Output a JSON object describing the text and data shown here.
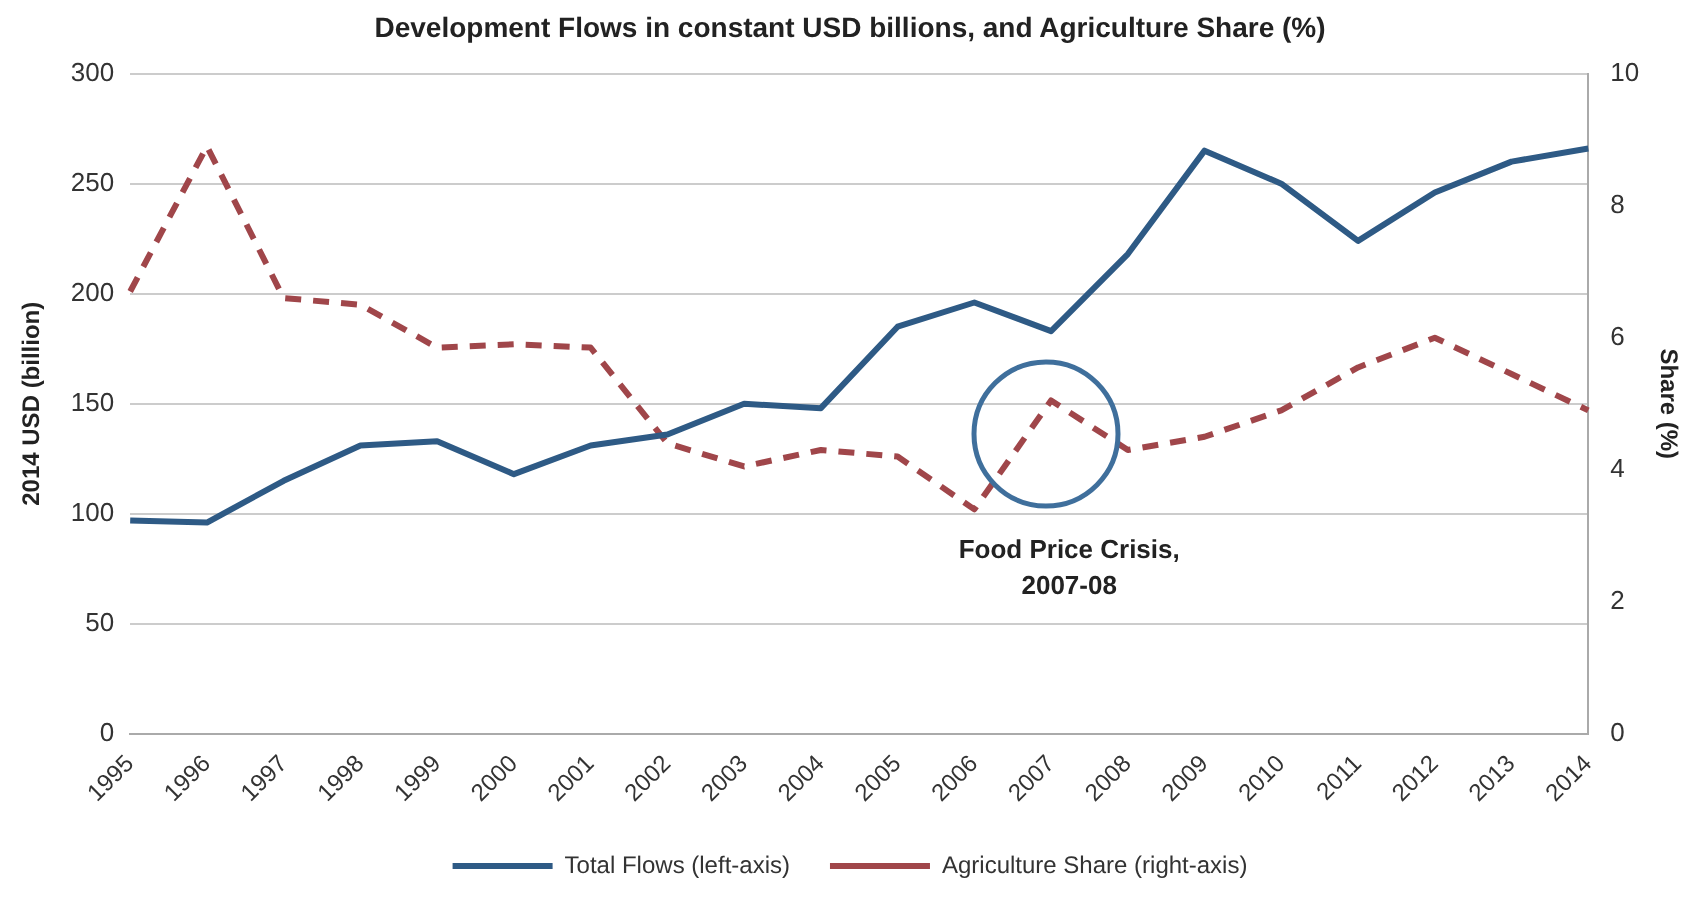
{
  "chart_data": {
    "type": "line",
    "title": "Development Flows in constant USD billions, and Agriculture Share (%)",
    "ylabel": "2014 USD (billion)",
    "y2label": "Share (%)",
    "categories": [
      "1995",
      "1996",
      "1997",
      "1998",
      "1999",
      "2000",
      "2001",
      "2002",
      "2003",
      "2004",
      "2005",
      "2006",
      "2007",
      "2008",
      "2009",
      "2010",
      "2011",
      "2012",
      "2013",
      "2014"
    ],
    "series": [
      {
        "name": "Total Flows (left-axis)",
        "color": "#2e5a85",
        "line_style": "solid",
        "values": [
          97,
          96,
          115,
          131,
          133,
          118,
          131,
          136,
          150,
          148,
          185,
          196,
          183,
          218,
          265,
          250,
          224,
          246,
          260,
          266
        ]
      },
      {
        "name": "Agriculture Share (right-axis)",
        "color": "#a0464a",
        "line_style": "dashed",
        "axis": "y2",
        "values": [
          6.7,
          8.9,
          6.6,
          6.5,
          5.85,
          5.9,
          5.85,
          4.4,
          4.05,
          4.3,
          4.2,
          3.4,
          5.05,
          4.3,
          4.5,
          4.9,
          5.55,
          6.0,
          5.45,
          4.9
        ]
      }
    ],
    "ylim": [
      0,
      300
    ],
    "yticks": [
      0,
      50,
      100,
      150,
      200,
      250,
      300
    ],
    "y2lim": [
      0,
      10
    ],
    "y2ticks": [
      0,
      2,
      4,
      6,
      8,
      10
    ],
    "grid": "y",
    "legend": "bottom",
    "marker": "none",
    "annotations": [
      "Food Price Crisis,\n2007-08"
    ]
  }
}
